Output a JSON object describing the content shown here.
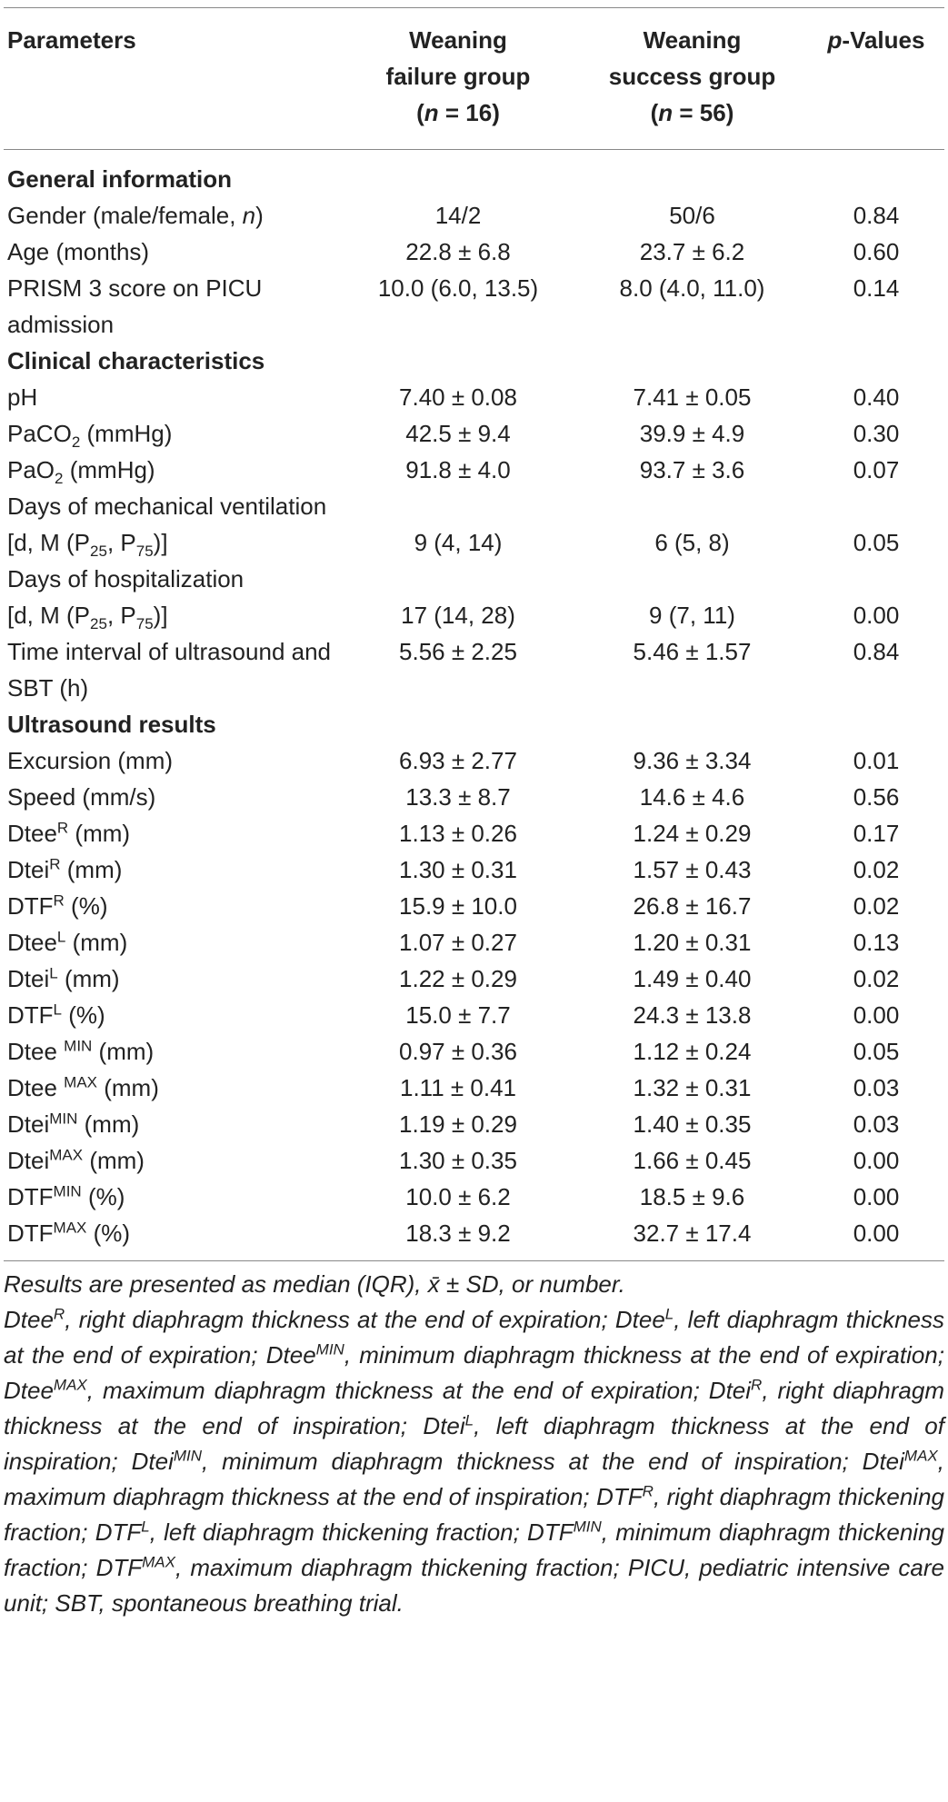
{
  "header": {
    "col1": "Parameters",
    "col2_line1": "Weaning",
    "col2_line2": "failure group",
    "col2_line3": "(n = 16)",
    "col3_line1": "Weaning",
    "col3_line2": "success group",
    "col3_line3": "(n = 56)",
    "col4": "p-Values"
  },
  "sections": {
    "general": "General information",
    "clinical": "Clinical characteristics",
    "ultrasound": "Ultrasound results"
  },
  "rows": [
    {
      "label": "Gender (male/female, n)",
      "fail": "14/2",
      "success": "50/6",
      "p": "0.84"
    },
    {
      "label": "Age (months)",
      "fail": "22.8 ± 6.8",
      "success": "23.7 ± 6.2",
      "p": "0.60"
    },
    {
      "label": "PRISM 3 score on PICU admission",
      "fail": "10.0 (6.0, 13.5)",
      "success": "8.0 (4.0, 11.0)",
      "p": "0.14"
    },
    {
      "label": "pH",
      "fail": "7.40 ± 0.08",
      "success": "7.41 ± 0.05",
      "p": "0.40"
    },
    {
      "label": "PaCO2 (mmHg)",
      "fail": "42.5 ± 9.4",
      "success": "39.9 ± 4.9",
      "p": "0.30"
    },
    {
      "label": "PaO2 (mmHg)",
      "fail": "91.8 ± 4.0",
      "success": "93.7 ± 3.6",
      "p": "0.07"
    },
    {
      "label": "Days of mechanical ventilation [d, M (P25, P75)]",
      "fail": "9 (4, 14)",
      "success": "6 (5, 8)",
      "p": "0.05"
    },
    {
      "label": "Days of hospitalization [d, M (P25, P75)]",
      "fail": "17 (14, 28)",
      "success": "9 (7, 11)",
      "p": "0.00"
    },
    {
      "label": "Time interval of ultrasound and SBT (h)",
      "fail": "5.56 ± 2.25",
      "success": "5.46 ± 1.57",
      "p": "0.84"
    },
    {
      "label": "Excursion (mm)",
      "fail": "6.93 ± 2.77",
      "success": "9.36 ± 3.34",
      "p": "0.01"
    },
    {
      "label": "Speed (mm/s)",
      "fail": "13.3 ± 8.7",
      "success": "14.6 ± 4.6",
      "p": "0.56"
    },
    {
      "label": "DteeR (mm)",
      "fail": "1.13 ± 0.26",
      "success": "1.24 ± 0.29",
      "p": "0.17"
    },
    {
      "label": "DteiR (mm)",
      "fail": "1.30 ± 0.31",
      "success": "1.57 ± 0.43",
      "p": "0.02"
    },
    {
      "label": "DTFR (%)",
      "fail": "15.9 ± 10.0",
      "success": "26.8 ± 16.7",
      "p": "0.02"
    },
    {
      "label": "DteeL (mm)",
      "fail": "1.07 ± 0.27",
      "success": "1.20 ± 0.31",
      "p": "0.13"
    },
    {
      "label": "DteiL (mm)",
      "fail": "1.22 ± 0.29",
      "success": "1.49 ± 0.40",
      "p": "0.02"
    },
    {
      "label": "DTFL (%)",
      "fail": "15.0 ± 7.7",
      "success": "24.3 ± 13.8",
      "p": "0.00"
    },
    {
      "label": "Dtee MIN (mm)",
      "fail": "0.97 ± 0.36",
      "success": "1.12 ± 0.24",
      "p": "0.05"
    },
    {
      "label": "Dtee MAX (mm)",
      "fail": "1.11 ± 0.41",
      "success": "1.32 ± 0.31",
      "p": "0.03"
    },
    {
      "label": "DteiMIN (mm)",
      "fail": "1.19 ± 0.29",
      "success": "1.40 ± 0.35",
      "p": "0.03"
    },
    {
      "label": "DteiMAX (mm)",
      "fail": "1.30 ± 0.35",
      "success": "1.66 ± 0.45",
      "p": "0.00"
    },
    {
      "label": "DTFMIN (%)",
      "fail": "10.0 ± 6.2",
      "success": "18.5 ± 9.6",
      "p": "0.00"
    },
    {
      "label": "DTFMAX (%)",
      "fail": "18.3 ± 9.2",
      "success": "32.7 ± 17.4",
      "p": "0.00"
    }
  ],
  "footnote": {
    "line1": "Results are presented as median (IQR), x̄ ± SD, or number.",
    "abbreviations": "DteeR, right diaphragm thickness at the end of expiration; DteeL, left diaphragm thickness at the end of expiration; DteeMIN, minimum diaphragm thickness at the end of expiration; DteeMAX, maximum diaphragm thickness at the end of expiration; DteiR, right diaphragm thickness at the end of inspiration; DteiL, left diaphragm thickness at the end of inspiration; DteiMIN, minimum diaphragm thickness at the end of inspiration; DteiMAX, maximum diaphragm thickness at the end of inspiration; DTFR, right diaphragm thickening fraction; DTFL, left diaphragm thickening fraction; DTFMIN, minimum diaphragm thickening fraction; DTFMAX, maximum diaphragm thickening fraction; PICU, pediatric intensive care unit; SBT, spontaneous breathing trial."
  }
}
